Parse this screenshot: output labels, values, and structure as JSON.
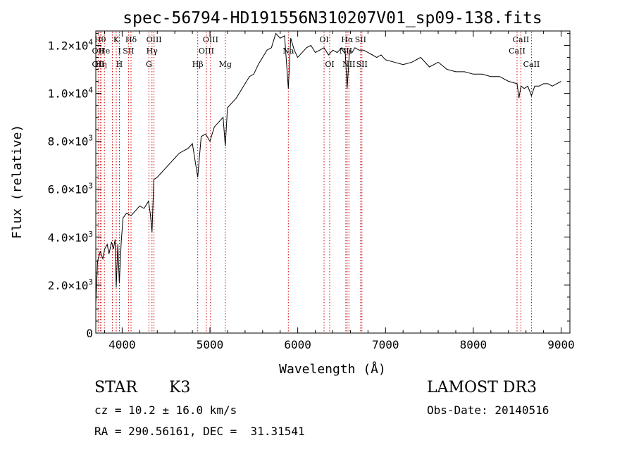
{
  "chart_data": {
    "type": "line",
    "title": "spec-56794-HD191556N310207V01_sp09-138.fits",
    "xlabel": "Wavelength (Å)",
    "ylabel": "Flux (relative)",
    "xlim": [
      3700,
      9100
    ],
    "ylim": [
      0,
      12600
    ],
    "x_ticks": [
      {
        "value": 4000,
        "label": "4000"
      },
      {
        "value": 5000,
        "label": "5000"
      },
      {
        "value": 6000,
        "label": "6000"
      },
      {
        "value": 7000,
        "label": "7000"
      },
      {
        "value": 8000,
        "label": "8000"
      },
      {
        "value": 9000,
        "label": "9000"
      }
    ],
    "y_ticks": [
      {
        "value": 0,
        "mant": "0",
        "exp": ""
      },
      {
        "value": 2000,
        "mant": "2.0×10",
        "exp": "3"
      },
      {
        "value": 4000,
        "mant": "4.0×10",
        "exp": "3"
      },
      {
        "value": 6000,
        "mant": "6.0×10",
        "exp": "3"
      },
      {
        "value": 8000,
        "mant": "8.0×10",
        "exp": "3"
      },
      {
        "value": 10000,
        "mant": "1.0×10",
        "exp": "4"
      },
      {
        "value": 12000,
        "mant": "1.2×10",
        "exp": "4"
      }
    ],
    "grid": false,
    "line_color": "#000000",
    "marker_color": "#cc0000",
    "series": [
      {
        "x": [
          3700,
          3720,
          3750,
          3780,
          3800,
          3830,
          3850,
          3880,
          3900,
          3920,
          3933,
          3950,
          3968,
          3990,
          4010,
          4050,
          4101,
          4150,
          4200,
          4250,
          4300,
          4320,
          4340,
          4360,
          4400,
          4450,
          4500,
          4550,
          4600,
          4650,
          4700,
          4750,
          4800,
          4861,
          4900,
          4950,
          5000,
          5050,
          5100,
          5150,
          5175,
          5200,
          5250,
          5300,
          5350,
          5400,
          5450,
          5500,
          5550,
          5600,
          5650,
          5700,
          5750,
          5800,
          5850,
          5893,
          5920,
          5960,
          6000,
          6050,
          6100,
          6150,
          6200,
          6250,
          6300,
          6350,
          6400,
          6450,
          6500,
          6540,
          6563,
          6590,
          6620,
          6650,
          6700,
          6750,
          6800,
          6850,
          6900,
          6950,
          7000,
          7100,
          7200,
          7300,
          7400,
          7500,
          7600,
          7700,
          7800,
          7900,
          8000,
          8100,
          8200,
          8300,
          8400,
          8498,
          8520,
          8542,
          8580,
          8620,
          8662,
          8700,
          8750,
          8800,
          8850,
          8900,
          8950,
          9000
        ],
        "y": [
          1200,
          3000,
          3400,
          3100,
          3500,
          3700,
          3300,
          3800,
          3500,
          3900,
          1900,
          3700,
          2100,
          3800,
          4800,
          5000,
          4900,
          5100,
          5300,
          5200,
          5500,
          5000,
          4200,
          6400,
          6500,
          6700,
          6900,
          7100,
          7300,
          7500,
          7600,
          7700,
          7900,
          6500,
          8200,
          8300,
          8000,
          8600,
          8800,
          9000,
          7800,
          9400,
          9600,
          9800,
          10100,
          10400,
          10700,
          10800,
          11200,
          11500,
          11800,
          11900,
          12500,
          12300,
          12400,
          10200,
          12300,
          11800,
          11500,
          11700,
          11900,
          12000,
          11700,
          11800,
          11900,
          11600,
          11800,
          11700,
          11900,
          11800,
          10200,
          11800,
          11700,
          11900,
          11800,
          11800,
          11700,
          11600,
          11500,
          11600,
          11400,
          11300,
          11200,
          11300,
          11500,
          11100,
          11300,
          11000,
          10900,
          10900,
          10800,
          10800,
          10700,
          10700,
          10500,
          10400,
          9800,
          10300,
          10200,
          10300,
          9900,
          10300,
          10300,
          10400,
          10400,
          10300,
          10400,
          10500
        ]
      }
    ],
    "line_markers": [
      {
        "x": 3727,
        "label": "OII",
        "row": 2
      },
      {
        "x": 3727,
        "label": "OII",
        "row": 3
      },
      {
        "x": 3750,
        "label": "Hθ",
        "row": 1
      },
      {
        "x": 3760,
        "label": "Hη",
        "row": 3
      },
      {
        "x": 3798,
        "label": "He",
        "row": 2
      },
      {
        "x": 3889,
        "label": "",
        "row": 0
      },
      {
        "x": 3933,
        "label": "K",
        "row": 1
      },
      {
        "x": 3968,
        "label": "H",
        "row": 3
      },
      {
        "x": 3970,
        "label": "I",
        "row": 2
      },
      {
        "x": 4072,
        "label": "SII",
        "row": 2
      },
      {
        "x": 4101,
        "label": "Hδ",
        "row": 1
      },
      {
        "x": 4305,
        "label": "G",
        "row": 3
      },
      {
        "x": 4340,
        "label": "Hγ",
        "row": 2
      },
      {
        "x": 4363,
        "label": "OIII",
        "row": 1
      },
      {
        "x": 4861,
        "label": "Hβ",
        "row": 3
      },
      {
        "x": 4959,
        "label": "OIII",
        "row": 2
      },
      {
        "x": 5007,
        "label": "OIII",
        "row": 1
      },
      {
        "x": 5175,
        "label": "Mg",
        "row": 3
      },
      {
        "x": 5893,
        "label": "Na",
        "row": 2
      },
      {
        "x": 6300,
        "label": "OI",
        "row": 1
      },
      {
        "x": 6364,
        "label": "OI",
        "row": 3
      },
      {
        "x": 6548,
        "label": "NII",
        "row": 2
      },
      {
        "x": 6563,
        "label": "Hα",
        "row": 1
      },
      {
        "x": 6583,
        "label": "NII",
        "row": 3
      },
      {
        "x": 6716,
        "label": "SII",
        "row": 1
      },
      {
        "x": 6731,
        "label": "SII",
        "row": 3
      },
      {
        "x": 8498,
        "label": "CaII",
        "row": 2
      },
      {
        "x": 8542,
        "label": "CaII",
        "row": 1
      },
      {
        "x": 8662,
        "label": "CaII",
        "row": 3
      }
    ]
  },
  "footer": {
    "object_class": "STAR",
    "subclass": "K3",
    "survey": "LAMOST DR3",
    "cz": "cz = 10.2 ± 16.0 km/s",
    "obs_date": "Obs-Date: 20140516",
    "coords": "RA = 290.56161, DEC =  31.31541"
  }
}
